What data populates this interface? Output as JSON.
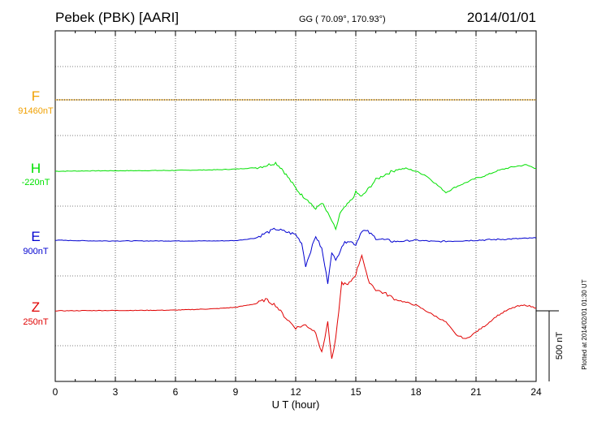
{
  "header": {
    "station": "Pebek (PBK)  [AARI]",
    "coords": "GG ( 70.09°, 170.93°)",
    "date": "2014/01/01"
  },
  "side_note": "Plotted at 2014/02/01 01:30 UT",
  "scale_label": "500 nT",
  "chart_data": {
    "type": "line",
    "xlabel": "U T (hour)",
    "xlim": [
      0,
      24
    ],
    "xticks": [
      "0",
      "3",
      "6",
      "9",
      "12",
      "15",
      "18",
      "21",
      "24"
    ],
    "grid": true,
    "scale_bar_nT": 500,
    "series": [
      {
        "name": "F",
        "baseline": "91460nT",
        "color": "#f0a000",
        "x": [
          0,
          24
        ],
        "y": [
          0,
          0
        ]
      },
      {
        "name": "H",
        "baseline": "-220nT",
        "color": "#00e000",
        "x": [
          0,
          2,
          4,
          6,
          8,
          9,
          10,
          10.5,
          11,
          11.3,
          11.6,
          12,
          12.3,
          12.6,
          13,
          13.3,
          13.6,
          13.8,
          14,
          14.2,
          14.5,
          14.8,
          15,
          15.3,
          15.6,
          16,
          16.5,
          17,
          17.5,
          18,
          18.5,
          19,
          19.5,
          20,
          20.5,
          21,
          21.5,
          22,
          22.5,
          23,
          23.5,
          24
        ],
        "y": [
          0,
          3,
          4,
          6,
          10,
          15,
          25,
          40,
          60,
          20,
          -40,
          -120,
          -170,
          -200,
          -270,
          -220,
          -300,
          -350,
          -420,
          -300,
          -250,
          -200,
          -150,
          -180,
          -130,
          -60,
          -20,
          10,
          20,
          0,
          -30,
          -90,
          -150,
          -110,
          -80,
          -50,
          -30,
          0,
          20,
          35,
          45,
          20
        ]
      },
      {
        "name": "E",
        "baseline": "900nT",
        "color": "#0000d0",
        "x": [
          0,
          2,
          4,
          6,
          8,
          9,
          10,
          10.5,
          11,
          11.5,
          12,
          12.3,
          12.5,
          13,
          13.3,
          13.6,
          13.8,
          14,
          14.3,
          14.6,
          15,
          15.3,
          15.6,
          16,
          16.5,
          17,
          18,
          19,
          20,
          21,
          22,
          23,
          24
        ],
        "y": [
          0,
          -5,
          -5,
          -5,
          -5,
          -3,
          15,
          50,
          80,
          60,
          40,
          -20,
          -180,
          30,
          -60,
          -300,
          -80,
          -150,
          -40,
          0,
          -30,
          70,
          60,
          15,
          0,
          -10,
          0,
          -10,
          -5,
          0,
          5,
          10,
          15
        ]
      },
      {
        "name": "Z",
        "baseline": "250nT",
        "color": "#e00000",
        "x": [
          0,
          2,
          4,
          6,
          8,
          9,
          10,
          10.5,
          11,
          11.5,
          12,
          12.5,
          13,
          13.3,
          13.6,
          13.8,
          14,
          14.3,
          14.6,
          15,
          15.3,
          15.6,
          16,
          16.5,
          17,
          18,
          19,
          19.5,
          20,
          20.5,
          21,
          21.5,
          22,
          22.5,
          23,
          23.5,
          24
        ],
        "y": [
          0,
          2,
          3,
          5,
          15,
          25,
          50,
          80,
          40,
          -50,
          -120,
          -100,
          -150,
          -300,
          -80,
          -350,
          -200,
          200,
          180,
          260,
          400,
          220,
          150,
          120,
          80,
          40,
          -40,
          -80,
          -170,
          -200,
          -150,
          -100,
          -40,
          0,
          30,
          40,
          20
        ]
      }
    ]
  }
}
